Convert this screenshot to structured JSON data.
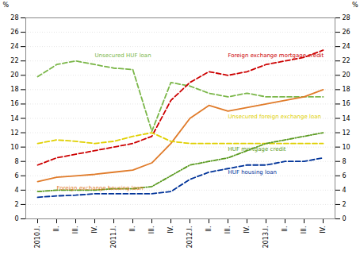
{
  "chart_data": {
    "type": "line",
    "categories": [
      "2010.I.",
      "II.",
      "III.",
      "IV.",
      "2011.I.",
      "II.",
      "III.",
      "IV.",
      "2012.I.",
      "II.",
      "III.",
      "IV.",
      "2013.I.",
      "II.",
      "III.",
      "IV."
    ],
    "series": [
      {
        "name": "Unsecured HUF loan",
        "color": "#7ab648",
        "line_style": "dashed",
        "values": [
          19.8,
          21.5,
          22.0,
          21.5,
          21.0,
          20.8,
          12.2,
          19.0,
          18.5,
          17.5,
          17.0,
          17.5,
          17.0,
          17.0,
          17.0,
          17.0
        ]
      },
      {
        "name": "Foreign exchange mortgage credit",
        "color": "#cc0000",
        "line_style": "dashed",
        "values": [
          7.5,
          8.5,
          9.0,
          9.5,
          10.0,
          10.5,
          11.5,
          16.5,
          19.0,
          20.5,
          20.0,
          20.5,
          21.5,
          22.0,
          22.5,
          23.5
        ]
      },
      {
        "name": "Foreign exchange housing loan",
        "color": "#e07b2a",
        "line_style": "solid",
        "values": [
          5.2,
          5.8,
          6.0,
          6.2,
          6.5,
          6.8,
          7.8,
          10.5,
          14.0,
          15.8,
          15.0,
          15.5,
          16.0,
          16.5,
          17.0,
          18.0
        ]
      },
      {
        "name": "Unsecured foreign exchange loan",
        "color": "#e0d000",
        "line_style": "dashed",
        "values": [
          10.5,
          11.0,
          10.8,
          10.5,
          10.8,
          11.5,
          12.0,
          10.8,
          10.5,
          10.5,
          10.5,
          10.5,
          10.5,
          10.5,
          10.5,
          10.5
        ]
      },
      {
        "name": "HUF mortgage credit",
        "color": "#5a9a20",
        "line_style": "dashdot",
        "values": [
          3.8,
          4.0,
          4.0,
          4.0,
          4.2,
          4.2,
          4.5,
          6.0,
          7.5,
          8.0,
          8.5,
          9.5,
          10.5,
          11.0,
          11.5,
          12.0
        ]
      },
      {
        "name": "HUF housing loan",
        "color": "#003399",
        "line_style": "dashed",
        "values": [
          3.0,
          3.2,
          3.3,
          3.5,
          3.5,
          3.5,
          3.5,
          3.8,
          5.5,
          6.5,
          7.0,
          7.5,
          7.5,
          8.0,
          8.0,
          8.5
        ]
      }
    ],
    "annotations": [
      {
        "text": "Unsecured HUF loan",
        "x": 3,
        "y": 22.5,
        "color": "#7ab648"
      },
      {
        "text": "Foreign exchange mortgage credit",
        "x": 10,
        "y": 22.5,
        "color": "#cc0000"
      },
      {
        "text": "Foreign exchange housing loan",
        "x": 1,
        "y": 4.0,
        "color": "#e07b2a"
      },
      {
        "text": "Unsecured foreign exchange loan",
        "x": 10,
        "y": 14.0,
        "color": "#e0d000"
      },
      {
        "text": "HUF mortgage credit",
        "x": 10,
        "y": 9.5,
        "color": "#5a9a20"
      },
      {
        "text": "HUF housing loan",
        "x": 10,
        "y": 6.2,
        "color": "#003399"
      }
    ],
    "ylabel": "%",
    "ylim": [
      0,
      28
    ],
    "yticks": [
      0,
      2,
      4,
      6,
      8,
      10,
      12,
      14,
      16,
      18,
      20,
      22,
      24,
      26,
      28
    ],
    "y2label": "%",
    "y2lim": [
      0,
      28
    ],
    "y2ticks": [
      0,
      2,
      4,
      6,
      8,
      10,
      12,
      14,
      16,
      18,
      20,
      22,
      24,
      26,
      28
    ],
    "grid": true
  }
}
